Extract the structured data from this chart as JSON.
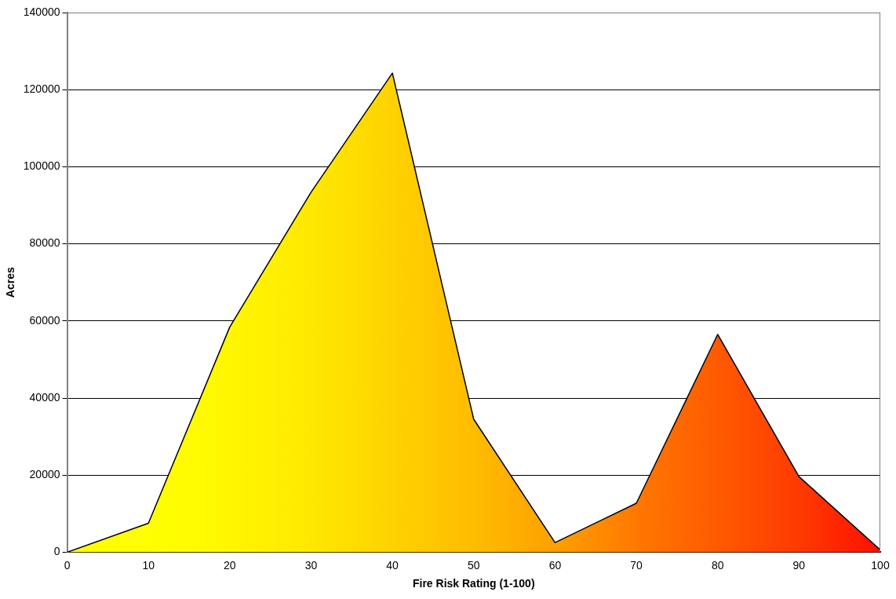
{
  "chart_data": {
    "type": "area",
    "xlabel": "Fire Risk Rating (1-100)",
    "ylabel": "Acres",
    "x": [
      0,
      10,
      20,
      30,
      40,
      50,
      60,
      70,
      80,
      90,
      100
    ],
    "values": [
      0,
      7500,
      58400,
      93400,
      124300,
      34500,
      2500,
      12700,
      56500,
      19600,
      600
    ],
    "colors": [
      "#ffff00",
      "#ffff00",
      "#fff700",
      "#ffe800",
      "#ffd200",
      "#ffbc00",
      "#ffa000",
      "#ff7800",
      "#ff5a00",
      "#ff3a00",
      "#ff1000"
    ],
    "xlim": [
      0,
      100
    ],
    "xticks": [
      0,
      10,
      20,
      30,
      40,
      50,
      60,
      70,
      80,
      90,
      100
    ],
    "ylim": [
      0,
      140000
    ],
    "yticks": [
      0,
      20000,
      40000,
      60000,
      80000,
      100000,
      120000,
      140000
    ],
    "grid": "y",
    "legend": false
  }
}
